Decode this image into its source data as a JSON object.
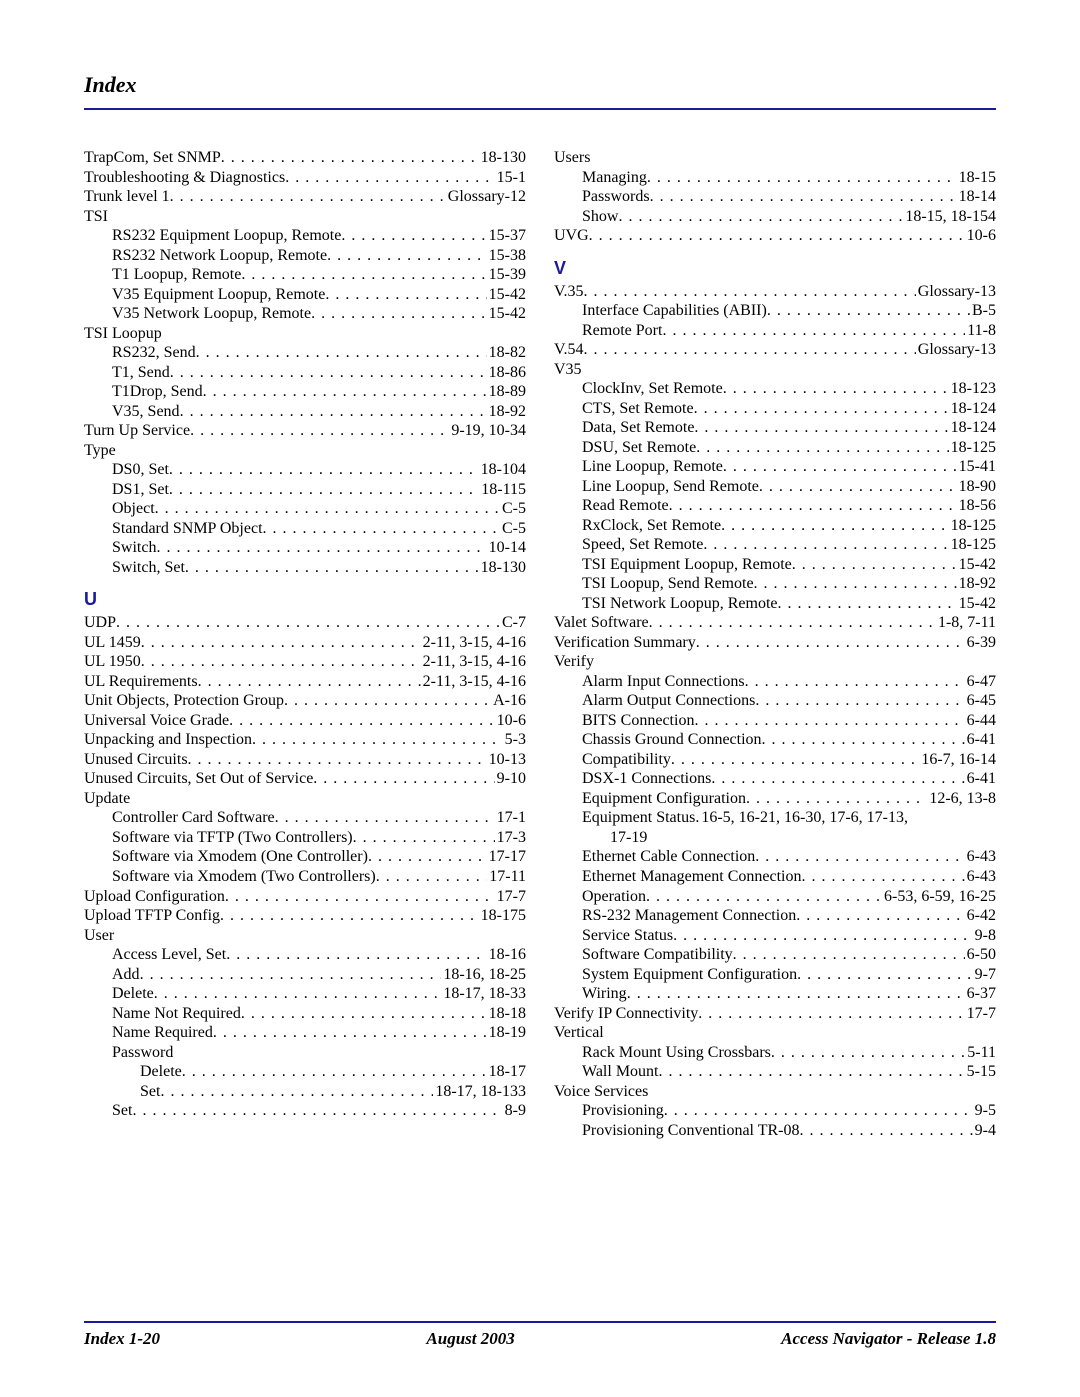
{
  "header": {
    "title": "Index"
  },
  "footer": {
    "left": "Index 1-20",
    "center": "August 2003",
    "right": "Access Navigator - Release 1.8"
  },
  "sections": {
    "U": "U",
    "V": "V"
  },
  "left_entries": [
    {
      "indent": 0,
      "label": "TrapCom, Set SNMP",
      "page": "18-130"
    },
    {
      "indent": 0,
      "label": "Troubleshooting & Diagnostics",
      "page": "15-1"
    },
    {
      "indent": 0,
      "label": "Trunk level 1",
      "page": "Glossary-12"
    },
    {
      "indent": 0,
      "label": "TSI",
      "page": ""
    },
    {
      "indent": 1,
      "label": "RS232 Equipment Loopup, Remote",
      "page": "15-37"
    },
    {
      "indent": 1,
      "label": "RS232 Network Loopup, Remote",
      "page": "15-38"
    },
    {
      "indent": 1,
      "label": "T1 Loopup, Remote",
      "page": "15-39"
    },
    {
      "indent": 1,
      "label": "V35 Equipment Loopup, Remote",
      "page": "15-42"
    },
    {
      "indent": 1,
      "label": "V35 Network Loopup, Remote",
      "page": "15-42"
    },
    {
      "indent": 0,
      "label": "TSI Loopup",
      "page": ""
    },
    {
      "indent": 1,
      "label": "RS232, Send",
      "page": "18-82"
    },
    {
      "indent": 1,
      "label": "T1, Send",
      "page": "18-86"
    },
    {
      "indent": 1,
      "label": "T1Drop, Send",
      "page": "18-89"
    },
    {
      "indent": 1,
      "label": "V35, Send",
      "page": "18-92"
    },
    {
      "indent": 0,
      "label": "Turn Up Service",
      "page": "9-19, 10-34"
    },
    {
      "indent": 0,
      "label": "Type",
      "page": ""
    },
    {
      "indent": 1,
      "label": "DS0, Set",
      "page": "18-104"
    },
    {
      "indent": 1,
      "label": "DS1, Set",
      "page": "18-115"
    },
    {
      "indent": 1,
      "label": "Object",
      "page": "C-5"
    },
    {
      "indent": 1,
      "label": "Standard SNMP Object",
      "page": "C-5"
    },
    {
      "indent": 1,
      "label": "Switch",
      "page": "10-14"
    },
    {
      "indent": 1,
      "label": "Switch, Set",
      "page": "18-130"
    }
  ],
  "left_u_entries": [
    {
      "indent": 0,
      "label": "UDP",
      "page": "C-7"
    },
    {
      "indent": 0,
      "label": "UL 1459",
      "page": "2-11, 3-15, 4-16"
    },
    {
      "indent": 0,
      "label": "UL 1950",
      "page": "2-11, 3-15, 4-16"
    },
    {
      "indent": 0,
      "label": "UL Requirements",
      "page": "2-11, 3-15, 4-16"
    },
    {
      "indent": 0,
      "label": "Unit Objects, Protection Group",
      "page": "A-16"
    },
    {
      "indent": 0,
      "label": "Universal Voice Grade",
      "page": "10-6"
    },
    {
      "indent": 0,
      "label": "Unpacking and Inspection",
      "page": "5-3"
    },
    {
      "indent": 0,
      "label": "Unused Circuits",
      "page": "10-13"
    },
    {
      "indent": 0,
      "label": "Unused Circuits, Set Out of Service",
      "page": "9-10"
    },
    {
      "indent": 0,
      "label": "Update",
      "page": ""
    },
    {
      "indent": 1,
      "label": "Controller Card Software",
      "page": "17-1"
    },
    {
      "indent": 1,
      "label": "Software via TFTP (Two Controllers)",
      "page": "17-3"
    },
    {
      "indent": 1,
      "label": "Software via Xmodem (One Controller)",
      "page": "17-17"
    },
    {
      "indent": 1,
      "label": "Software via Xmodem (Two Controllers)",
      "page": "17-11"
    },
    {
      "indent": 0,
      "label": "Upload Configuration",
      "page": "17-7"
    },
    {
      "indent": 0,
      "label": "Upload TFTP Config",
      "page": "18-175"
    },
    {
      "indent": 0,
      "label": "User",
      "page": ""
    },
    {
      "indent": 1,
      "label": "Access Level, Set",
      "page": "18-16"
    },
    {
      "indent": 1,
      "label": "Add",
      "page": "18-16, 18-25"
    },
    {
      "indent": 1,
      "label": "Delete",
      "page": "18-17, 18-33"
    },
    {
      "indent": 1,
      "label": "Name Not Required",
      "page": "18-18"
    },
    {
      "indent": 1,
      "label": "Name Required",
      "page": "18-19"
    },
    {
      "indent": 1,
      "label": "Password",
      "page": ""
    },
    {
      "indent": 2,
      "label": "Delete",
      "page": "18-17"
    },
    {
      "indent": 2,
      "label": "Set",
      "page": "18-17, 18-133"
    },
    {
      "indent": 1,
      "label": "Set",
      "page": "8-9"
    }
  ],
  "right_top_entries": [
    {
      "indent": 0,
      "label": "Users",
      "page": ""
    },
    {
      "indent": 1,
      "label": "Managing",
      "page": "18-15"
    },
    {
      "indent": 1,
      "label": "Passwords",
      "page": "18-14"
    },
    {
      "indent": 1,
      "label": "Show",
      "page": "18-15, 18-154"
    },
    {
      "indent": 0,
      "label": "UVG",
      "page": "10-6"
    }
  ],
  "right_v_entries": [
    {
      "indent": 0,
      "label": "V.35",
      "page": "Glossary-13"
    },
    {
      "indent": 1,
      "label": "Interface Capabilities (ABII)",
      "page": "B-5"
    },
    {
      "indent": 1,
      "label": "Remote Port",
      "page": "11-8"
    },
    {
      "indent": 0,
      "label": "V.54",
      "page": "Glossary-13"
    },
    {
      "indent": 0,
      "label": "V35",
      "page": ""
    },
    {
      "indent": 1,
      "label": "ClockInv, Set Remote",
      "page": "18-123"
    },
    {
      "indent": 1,
      "label": "CTS, Set Remote",
      "page": "18-124"
    },
    {
      "indent": 1,
      "label": "Data, Set Remote",
      "page": "18-124"
    },
    {
      "indent": 1,
      "label": "DSU, Set Remote",
      "page": "18-125"
    },
    {
      "indent": 1,
      "label": "Line Loopup, Remote",
      "page": "15-41"
    },
    {
      "indent": 1,
      "label": "Line Loopup, Send Remote",
      "page": "18-90"
    },
    {
      "indent": 1,
      "label": "Read Remote",
      "page": "18-56"
    },
    {
      "indent": 1,
      "label": "RxClock, Set Remote",
      "page": "18-125"
    },
    {
      "indent": 1,
      "label": "Speed, Set Remote",
      "page": "18-125"
    },
    {
      "indent": 1,
      "label": "TSI Equipment Loopup, Remote",
      "page": "15-42"
    },
    {
      "indent": 1,
      "label": "TSI Loopup, Send Remote",
      "page": "18-92"
    },
    {
      "indent": 1,
      "label": "TSI Network Loopup, Remote",
      "page": "15-42"
    },
    {
      "indent": 0,
      "label": "Valet Software",
      "page": "1-8, 7-11"
    },
    {
      "indent": 0,
      "label": "Verification Summary",
      "page": "6-39"
    },
    {
      "indent": 0,
      "label": "Verify",
      "page": ""
    },
    {
      "indent": 1,
      "label": "Alarm Input Connections",
      "page": "6-47"
    },
    {
      "indent": 1,
      "label": "Alarm Output Connections",
      "page": "6-45"
    },
    {
      "indent": 1,
      "label": "BITS Connection",
      "page": "6-44"
    },
    {
      "indent": 1,
      "label": "Chassis Ground Connection",
      "page": "6-41"
    },
    {
      "indent": 1,
      "label": "Compatibility",
      "page": "16-7, 16-14"
    },
    {
      "indent": 1,
      "label": "DSX-1 Connections",
      "page": "6-41"
    },
    {
      "indent": 1,
      "label": "Equipment Configuration",
      "page": "12-6, 13-8"
    },
    {
      "indent": 1,
      "label": "Equipment Status",
      "page": "16-5, 16-21, 16-30, 17-6, 17-13,",
      "tight": true
    },
    {
      "indent": -1,
      "label": "17-19",
      "page": "",
      "cont": true
    },
    {
      "indent": 1,
      "label": "Ethernet Cable Connection",
      "page": "6-43"
    },
    {
      "indent": 1,
      "label": "Ethernet Management Connection",
      "page": "6-43"
    },
    {
      "indent": 1,
      "label": "Operation",
      "page": "6-53, 6-59, 16-25"
    },
    {
      "indent": 1,
      "label": "RS-232 Management Connection",
      "page": "6-42"
    },
    {
      "indent": 1,
      "label": "Service Status",
      "page": "9-8"
    },
    {
      "indent": 1,
      "label": "Software Compatibility",
      "page": "6-50"
    },
    {
      "indent": 1,
      "label": "System Equipment Configuration",
      "page": "9-7"
    },
    {
      "indent": 1,
      "label": "Wiring",
      "page": "6-37"
    },
    {
      "indent": 0,
      "label": "Verify IP Connectivity",
      "page": "17-7"
    },
    {
      "indent": 0,
      "label": "Vertical",
      "page": ""
    },
    {
      "indent": 1,
      "label": "Rack Mount Using Crossbars",
      "page": "5-11"
    },
    {
      "indent": 1,
      "label": "Wall Mount",
      "page": "5-15"
    },
    {
      "indent": 0,
      "label": "Voice Services",
      "page": ""
    },
    {
      "indent": 1,
      "label": "Provisioning",
      "page": "9-5"
    },
    {
      "indent": 1,
      "label": "Provisioning Conventional TR-08",
      "page": "9-4"
    }
  ]
}
